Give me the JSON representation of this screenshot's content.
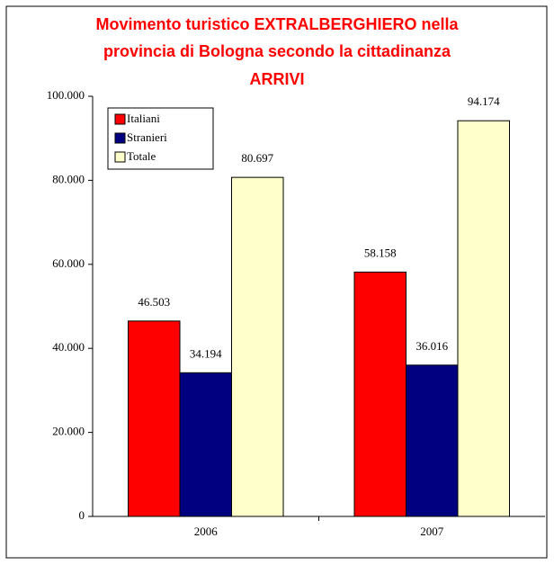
{
  "chart_data": {
    "type": "bar",
    "title": "Movimento turistico EXTRALBERGHIERO nella provincia di Bologna secondo la cittadinanza",
    "subtitle": "ARRIVI",
    "categories": [
      "2006",
      "2007"
    ],
    "series": [
      {
        "name": "Italiani",
        "color": "#ff0000",
        "values": [
          46503,
          58158
        ],
        "value_labels": [
          "46.503",
          "58.158"
        ]
      },
      {
        "name": "Stranieri",
        "color": "#000080",
        "values": [
          34194,
          36016
        ],
        "value_labels": [
          "34.194",
          "36.016"
        ]
      },
      {
        "name": "Totale",
        "color": "#ffffcc",
        "values": [
          80697,
          94174
        ],
        "value_labels": [
          "80.697",
          "94.174"
        ]
      }
    ],
    "ylim": [
      0,
      100000
    ],
    "yticks": [
      {
        "value": 0,
        "label": "0"
      },
      {
        "value": 20000,
        "label": "20.000"
      },
      {
        "value": 40000,
        "label": "40.000"
      },
      {
        "value": 60000,
        "label": "60.000"
      },
      {
        "value": 80000,
        "label": "80.000"
      },
      {
        "value": 100000,
        "label": "100.000"
      }
    ],
    "legend": "top-left"
  }
}
